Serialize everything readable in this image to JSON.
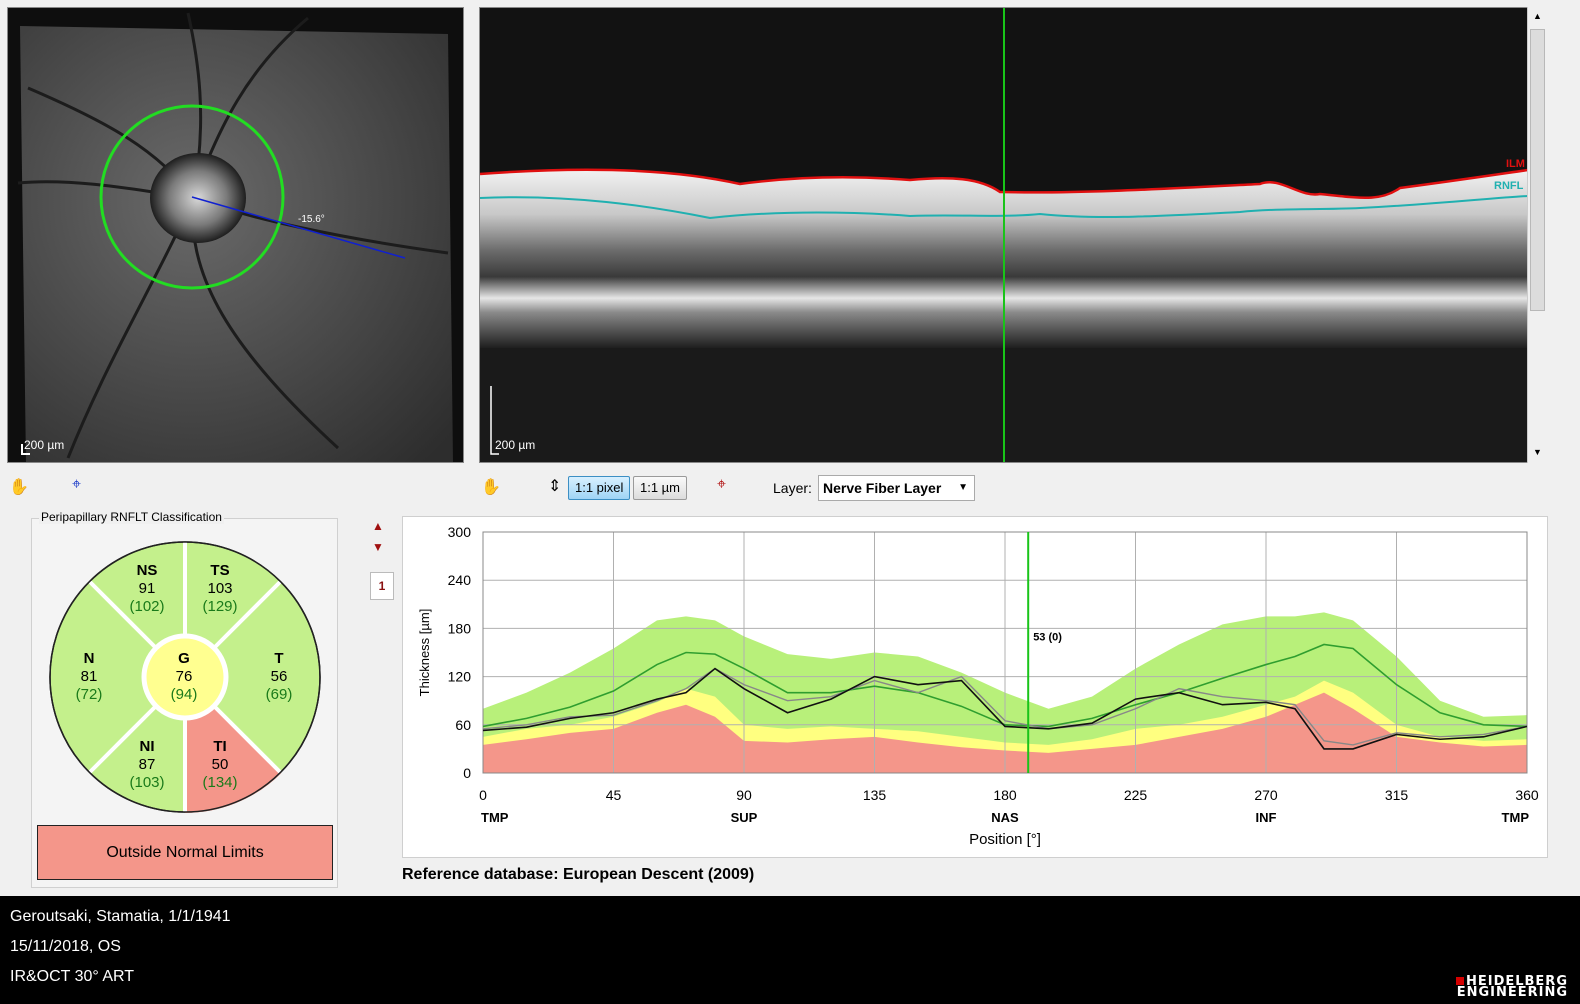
{
  "fundus": {
    "angle_label": "-15.6°",
    "scale_label": "200 µm"
  },
  "oct": {
    "scale_label": "200 µm",
    "ilm_label": "ILM",
    "rnfl_label": "RNFL"
  },
  "toolbar": {
    "pixel_btn": "1:1 pixel",
    "um_btn": "1:1 µm",
    "layer_label": "Layer:",
    "layer_value": "Nerve Fiber Layer"
  },
  "classification": {
    "title": "Peripapillary RNFLT Classification",
    "sectors": {
      "NS": {
        "name": "NS",
        "value": "91",
        "ref": "(102)"
      },
      "TS": {
        "name": "TS",
        "value": "103",
        "ref": "(129)"
      },
      "N": {
        "name": "N",
        "value": "81",
        "ref": "(72)"
      },
      "G": {
        "name": "G",
        "value": "76",
        "ref": "(94)"
      },
      "T": {
        "name": "T",
        "value": "56",
        "ref": "(69)"
      },
      "NI": {
        "name": "NI",
        "value": "87",
        "ref": "(103)"
      },
      "TI": {
        "name": "TI",
        "value": "50",
        "ref": "(134)"
      }
    },
    "result": "Outside Normal Limits"
  },
  "page_indicator": "1",
  "chart_data": {
    "type": "line",
    "ylabel": "Thickness [µm]",
    "xlabel": "Position [°]",
    "xlim": [
      0,
      360
    ],
    "ylim": [
      0,
      300
    ],
    "x_ticks": [
      0,
      45,
      90,
      135,
      180,
      225,
      270,
      315,
      360
    ],
    "y_ticks": [
      0,
      60,
      120,
      180,
      240,
      300
    ],
    "region_labels": [
      {
        "x": 0,
        "label": "TMP"
      },
      {
        "x": 90,
        "label": "SUP"
      },
      {
        "x": 180,
        "label": "NAS"
      },
      {
        "x": 270,
        "label": "INF"
      },
      {
        "x": 360,
        "label": "TMP"
      }
    ],
    "cursor": {
      "x": 188,
      "label": "53 (0)"
    },
    "x": [
      0,
      15,
      30,
      45,
      60,
      70,
      80,
      90,
      105,
      120,
      135,
      150,
      165,
      180,
      195,
      210,
      225,
      240,
      255,
      270,
      280,
      290,
      300,
      315,
      330,
      345,
      360
    ],
    "bands": {
      "upper_green": [
        80,
        100,
        125,
        155,
        190,
        195,
        190,
        170,
        148,
        142,
        150,
        145,
        125,
        100,
        80,
        95,
        130,
        160,
        185,
        195,
        195,
        200,
        190,
        145,
        90,
        70,
        72
      ],
      "upper_yellow": [
        45,
        55,
        60,
        70,
        88,
        105,
        95,
        60,
        55,
        58,
        55,
        52,
        45,
        38,
        35,
        42,
        55,
        60,
        70,
        85,
        95,
        115,
        100,
        60,
        45,
        40,
        42
      ],
      "red": [
        35,
        42,
        50,
        55,
        75,
        85,
        70,
        40,
        38,
        42,
        45,
        38,
        32,
        28,
        25,
        30,
        35,
        45,
        55,
        70,
        85,
        100,
        80,
        45,
        38,
        33,
        35
      ]
    },
    "series": [
      {
        "values": [
          58,
          68,
          82,
          102,
          135,
          150,
          148,
          130,
          100,
          100,
          108,
          100,
          83,
          60,
          58,
          68,
          85,
          100,
          118,
          135,
          145,
          160,
          155,
          110,
          75,
          60,
          58
        ]
      },
      {
        "values": [
          55,
          60,
          70,
          72,
          90,
          105,
          130,
          110,
          90,
          95,
          115,
          100,
          120,
          65,
          55,
          60,
          80,
          105,
          95,
          90,
          85,
          40,
          35,
          50,
          45,
          48,
          58
        ]
      },
      {
        "values": [
          53,
          57,
          68,
          75,
          92,
          100,
          130,
          105,
          75,
          92,
          120,
          110,
          115,
          58,
          55,
          62,
          92,
          100,
          85,
          88,
          80,
          30,
          30,
          48,
          42,
          45,
          58
        ]
      }
    ],
    "colors": {
      "normal": "#b8f07a",
      "borderline": "#ffff80",
      "outside": "#f4968a",
      "mean": "#2f9e2f",
      "cursor": "#19c419"
    }
  },
  "reference_db": "Reference database: European Descent (2009)",
  "patient": {
    "name_line": "Geroutsaki, Stamatia, 1/1/1941",
    "date_line": "15/11/2018, OS",
    "mode_line": "IR&OCT 30° ART"
  },
  "brand": {
    "line1": "HEIDELBERG",
    "line2": "ENGINEERING"
  }
}
